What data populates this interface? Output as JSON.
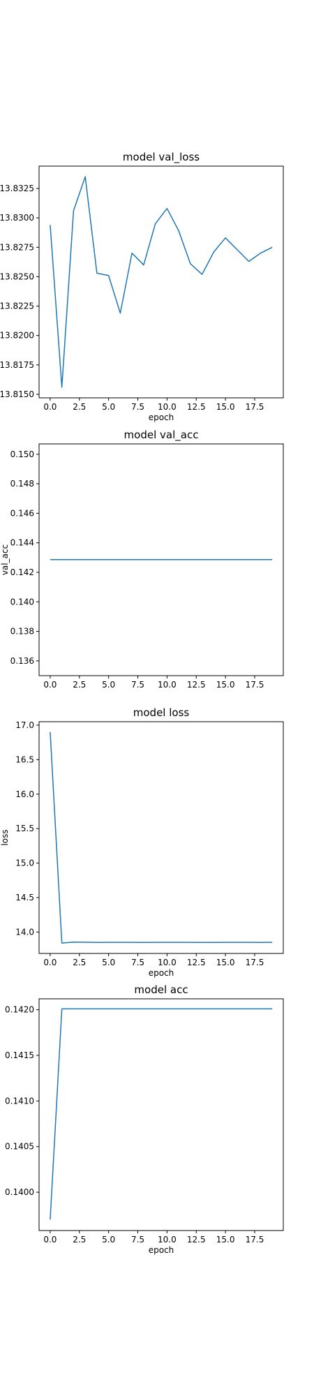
{
  "line_color": "#1f77b4",
  "chart_data": [
    {
      "type": "line",
      "title": "model val_loss",
      "xlabel": "epoch",
      "ylabel": "",
      "x": [
        0,
        1,
        2,
        3,
        4,
        5,
        6,
        7,
        8,
        9,
        10,
        11,
        12,
        13,
        14,
        15,
        16,
        17,
        18,
        19
      ],
      "series": [
        {
          "values": [
            13.8294,
            13.8156,
            13.8306,
            13.8335,
            13.8253,
            13.8251,
            13.8219,
            13.827,
            13.826,
            13.8295,
            13.8308,
            13.8289,
            13.8261,
            13.8252,
            13.8271,
            13.8283,
            13.8273,
            13.8263,
            13.827,
            13.8275
          ]
        }
      ],
      "xlim": [
        -0.95,
        19.95
      ],
      "ylim": [
        13.8147,
        13.8344
      ],
      "xticks": [
        0,
        2.5,
        5,
        7.5,
        10,
        12.5,
        15,
        17.5
      ],
      "xtick_labels": [
        "0.0",
        "2.5",
        "5.0",
        "7.5",
        "10.0",
        "12.5",
        "15.0",
        "17.5"
      ],
      "yticks": [
        13.815,
        13.8175,
        13.82,
        13.8225,
        13.825,
        13.8275,
        13.83,
        13.8325
      ],
      "ytick_labels": [
        "13.8150",
        "13.8175",
        "13.8200",
        "13.8225",
        "13.8250",
        "13.8275",
        "13.8300",
        "13.8325"
      ],
      "grid": false
    },
    {
      "type": "line",
      "title": "model val_acc",
      "xlabel": "",
      "ylabel": "val_acc",
      "x": [
        0,
        1,
        2,
        3,
        4,
        5,
        6,
        7,
        8,
        9,
        10,
        11,
        12,
        13,
        14,
        15,
        16,
        17,
        18,
        19
      ],
      "series": [
        {
          "values": [
            0.14286,
            0.14286,
            0.14286,
            0.14286,
            0.14286,
            0.14286,
            0.14286,
            0.14286,
            0.14286,
            0.14286,
            0.14286,
            0.14286,
            0.14286,
            0.14286,
            0.14286,
            0.14286,
            0.14286,
            0.14286,
            0.14286,
            0.14286
          ]
        }
      ],
      "xlim": [
        -0.95,
        19.95
      ],
      "ylim": [
        0.135,
        0.1507
      ],
      "xticks": [
        0,
        2.5,
        5,
        7.5,
        10,
        12.5,
        15,
        17.5
      ],
      "xtick_labels": [
        "0.0",
        "2.5",
        "5.0",
        "7.5",
        "10.0",
        "12.5",
        "15.0",
        "17.5"
      ],
      "yticks": [
        0.136,
        0.138,
        0.14,
        0.142,
        0.144,
        0.146,
        0.148,
        0.15
      ],
      "ytick_labels": [
        "0.136",
        "0.138",
        "0.140",
        "0.142",
        "0.144",
        "0.146",
        "0.148",
        "0.150"
      ],
      "grid": false
    },
    {
      "type": "line",
      "title": "model loss",
      "xlabel": "epoch",
      "ylabel": "loss",
      "x": [
        0,
        1,
        2,
        3,
        4,
        5,
        6,
        7,
        8,
        9,
        10,
        11,
        12,
        13,
        14,
        15,
        16,
        17,
        18,
        19
      ],
      "series": [
        {
          "values": [
            16.9,
            13.84,
            13.855,
            13.852,
            13.85,
            13.851,
            13.851,
            13.851,
            13.85,
            13.851,
            13.851,
            13.851,
            13.851,
            13.85,
            13.85,
            13.851,
            13.851,
            13.851,
            13.85,
            13.851
          ]
        }
      ],
      "xlim": [
        -0.95,
        19.95
      ],
      "ylim": [
        13.69,
        17.05
      ],
      "xticks": [
        0,
        2.5,
        5,
        7.5,
        10,
        12.5,
        15,
        17.5
      ],
      "xtick_labels": [
        "0.0",
        "2.5",
        "5.0",
        "7.5",
        "10.0",
        "12.5",
        "15.0",
        "17.5"
      ],
      "yticks": [
        14.0,
        14.5,
        15.0,
        15.5,
        16.0,
        16.5,
        17.0
      ],
      "ytick_labels": [
        "14.0",
        "14.5",
        "15.0",
        "15.5",
        "16.0",
        "16.5",
        "17.0"
      ],
      "grid": false
    },
    {
      "type": "line",
      "title": "model acc",
      "xlabel": "epoch",
      "ylabel": "",
      "x": [
        0,
        1,
        2,
        3,
        4,
        5,
        6,
        7,
        8,
        9,
        10,
        11,
        12,
        13,
        14,
        15,
        16,
        17,
        18,
        19
      ],
      "series": [
        {
          "values": [
            0.1397,
            0.14201,
            0.14201,
            0.14201,
            0.14201,
            0.14201,
            0.14201,
            0.14201,
            0.14201,
            0.14201,
            0.14201,
            0.14201,
            0.14201,
            0.14201,
            0.14201,
            0.14201,
            0.14201,
            0.14201,
            0.14201,
            0.14201
          ]
        }
      ],
      "xlim": [
        -0.95,
        19.95
      ],
      "ylim": [
        0.13958,
        0.14212
      ],
      "xticks": [
        0,
        2.5,
        5,
        7.5,
        10,
        12.5,
        15,
        17.5
      ],
      "xtick_labels": [
        "0.0",
        "2.5",
        "5.0",
        "7.5",
        "10.0",
        "12.5",
        "15.0",
        "17.5"
      ],
      "yticks": [
        0.14,
        0.1405,
        0.141,
        0.1415,
        0.142
      ],
      "ytick_labels": [
        "0.1400",
        "0.1405",
        "0.1410",
        "0.1415",
        "0.1420"
      ],
      "grid": false
    }
  ]
}
